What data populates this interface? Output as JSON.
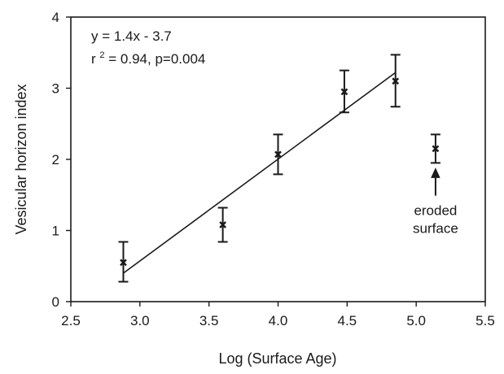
{
  "chart_data": {
    "type": "scatter",
    "title": "",
    "xlabel": "Log (Surface Age)",
    "ylabel": "Vesicular horizon index",
    "xlim": [
      2.5,
      5.5
    ],
    "ylim": [
      0,
      4
    ],
    "xticks": [
      2.5,
      3.0,
      3.5,
      4.0,
      4.5,
      5.0,
      5.5
    ],
    "xtick_labels": [
      "2.5",
      "3.0",
      "3.5",
      "4.0",
      "4.5",
      "5.0",
      "5.5"
    ],
    "yticks": [
      0,
      1,
      2,
      3,
      4
    ],
    "ytick_labels": [
      "0",
      "1",
      "2",
      "3",
      "4"
    ],
    "grid": false,
    "colors": {
      "ink": "#1a1a1a",
      "background": "#ffffff"
    },
    "marker": "x",
    "points": [
      {
        "x": 2.88,
        "y": 0.55,
        "err_low": 0.28,
        "err_high": 0.84
      },
      {
        "x": 3.6,
        "y": 1.08,
        "err_low": 0.84,
        "err_high": 1.32
      },
      {
        "x": 4.0,
        "y": 2.07,
        "err_low": 1.79,
        "err_high": 2.35
      },
      {
        "x": 4.48,
        "y": 2.95,
        "err_low": 2.66,
        "err_high": 3.25
      },
      {
        "x": 4.85,
        "y": 3.1,
        "err_low": 2.74,
        "err_high": 3.47
      },
      {
        "x": 5.14,
        "y": 2.15,
        "err_low": 1.95,
        "err_high": 2.35
      }
    ],
    "regression": {
      "x": [
        2.88,
        4.85
      ],
      "y": [
        0.4,
        3.22
      ],
      "equation": "y = 1.4x - 3.7",
      "stats_prefix": "r",
      "stats_superscript": "2",
      "stats_rest": " = 0.94, p=0.004"
    },
    "annotation": {
      "lines": [
        "eroded",
        "surface"
      ],
      "target_x": 5.14,
      "arrow_tip_y": 1.87,
      "arrow_tail_y": 1.49
    }
  }
}
